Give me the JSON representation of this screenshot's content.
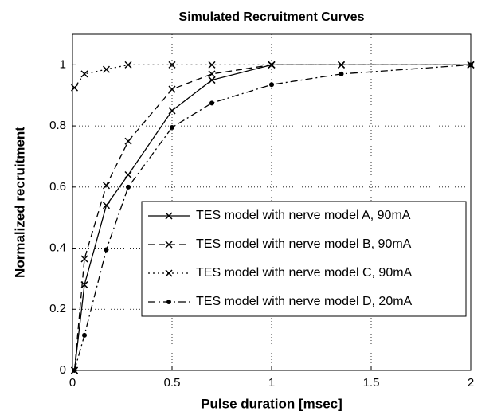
{
  "chart_data": {
    "type": "line",
    "title": "Simulated Recruitment Curves",
    "x_label": "Pulse duration [msec]",
    "y_label": "Normalized recruitment",
    "x": [
      0.01,
      0.06,
      0.17,
      0.28,
      0.5,
      0.7,
      1,
      1.35,
      2
    ],
    "series": [
      {
        "name": "TES model with nerve model A, 90mA",
        "color": "#000000",
        "line_style": "solid",
        "marker": "x",
        "values": [
          0,
          0.28,
          0.54,
          0.64,
          0.85,
          0.95,
          1,
          1,
          1
        ]
      },
      {
        "name": "TES model with nerve model B, 90mA",
        "color": "#000000",
        "line_style": "dashed",
        "marker": "x",
        "values": [
          0,
          0.365,
          0.605,
          0.75,
          0.92,
          0.97,
          1,
          1,
          1
        ]
      },
      {
        "name": "TES model with nerve model C, 90mA",
        "color": "#000000",
        "line_style": "dotted",
        "marker": "x",
        "values": [
          0.925,
          0.97,
          0.985,
          1,
          1,
          1,
          1,
          1,
          1
        ]
      },
      {
        "name": "TES model with nerve model D, 20mA",
        "color": "#000000",
        "line_style": "dashdot",
        "marker": "dot",
        "values": [
          0,
          0.115,
          0.395,
          0.6,
          0.795,
          0.875,
          0.935,
          0.97,
          1
        ]
      }
    ],
    "xlim": [
      0,
      2
    ],
    "xticks": [
      0,
      0.5,
      1,
      1.5,
      2
    ],
    "ylim": [
      0,
      1.1
    ],
    "yticks": [
      0,
      0.2,
      0.4,
      0.6,
      0.8,
      1
    ],
    "grid": true,
    "legend_position": "right"
  }
}
